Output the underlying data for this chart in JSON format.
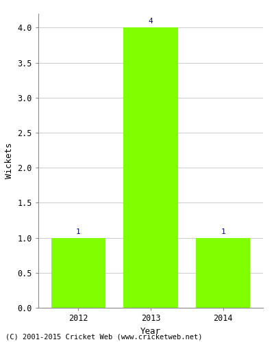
{
  "years": [
    "2012",
    "2013",
    "2014"
  ],
  "values": [
    1,
    4,
    1
  ],
  "bar_color": "#7FFF00",
  "bar_edge_color": "#7FFF00",
  "ylabel": "Wickets",
  "xlabel": "Year",
  "ylim": [
    0,
    4.2
  ],
  "yticks": [
    0.0,
    0.5,
    1.0,
    1.5,
    2.0,
    2.5,
    3.0,
    3.5,
    4.0
  ],
  "annotation_color": "#000080",
  "annotation_fontsize": 8,
  "footer_text": "(C) 2001-2015 Cricket Web (www.cricketweb.net)",
  "footer_fontsize": 7.5,
  "background_color": "#ffffff",
  "grid_color": "#cccccc",
  "axis_label_fontsize": 9,
  "tick_fontsize": 8.5,
  "bar_width": 0.75
}
